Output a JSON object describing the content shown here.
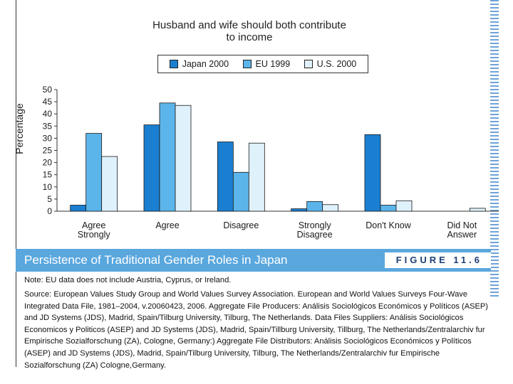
{
  "banner": {
    "title": "Persistence of Traditional Gender Roles in Japan",
    "figure_label": "FIGURE 11.6"
  },
  "note": "Note: EU data does not include Austria, Cyprus, or Ireland.",
  "source": "Source: European Values Study Group and World Values Survey Association. European and World Values Surveys Four-Wave Integrated Data File, 1981–2004, v.20060423, 2006. Aggregate File Producers: Análisis Sociológicos Económicos y Políticos (ASEP) and JD Systems (JDS), Madrid, Spain/Tilburg University, Tilburg, The Netherlands. Data Files Suppliers: Análisis Sociológicos Economicos y Politicos (ASEP) and JD Systems (JDS), Madrid, Spain/Tillburg University, Tillburg, The Netherlands/Zentralarchiv fur Empirische Sozialforschung (ZA), Cologne, Germany:) Aggregate File Distributors: Análisis Sociológicos Económicos y Políticos (ASEP) and JD Systems (JDS), Madrid, Spain/Tilburg University, Tilburg, The Netherlands/Zentralarchiv fur Empirische Sozialforschung (ZA) Cologne,Germany.",
  "colors": {
    "banner": "#5aa7de",
    "japan": "#1a7fd0",
    "eu": "#5cb5ea",
    "us": "#dff1fb"
  },
  "chart_data": {
    "type": "bar",
    "title": "Husband and wife should both contribute\nto income",
    "xlabel": "",
    "ylabel": "Percentage",
    "ylim": [
      0,
      50
    ],
    "yticks": [
      0,
      5,
      10,
      15,
      20,
      25,
      30,
      35,
      40,
      45,
      50
    ],
    "legend_position": "top-center",
    "categories": [
      [
        "Agree",
        "Strongly"
      ],
      [
        "Agree"
      ],
      [
        "Disagree"
      ],
      [
        "Strongly",
        "Disagree"
      ],
      [
        "Don't Know"
      ],
      [
        "Did Not",
        "Answer"
      ]
    ],
    "series": [
      {
        "name": "Japan 2000",
        "color": "#1a7fd0",
        "values": [
          2.5,
          35.5,
          28.5,
          1,
          31.5,
          null
        ]
      },
      {
        "name": "EU 1999",
        "color": "#5cb5ea",
        "values": [
          32,
          44.5,
          16,
          4,
          2.5,
          null
        ]
      },
      {
        "name": "U.S. 2000",
        "color": "#dff1fb",
        "values": [
          22.5,
          43.5,
          28,
          2.7,
          4.3,
          1.2
        ]
      }
    ]
  }
}
